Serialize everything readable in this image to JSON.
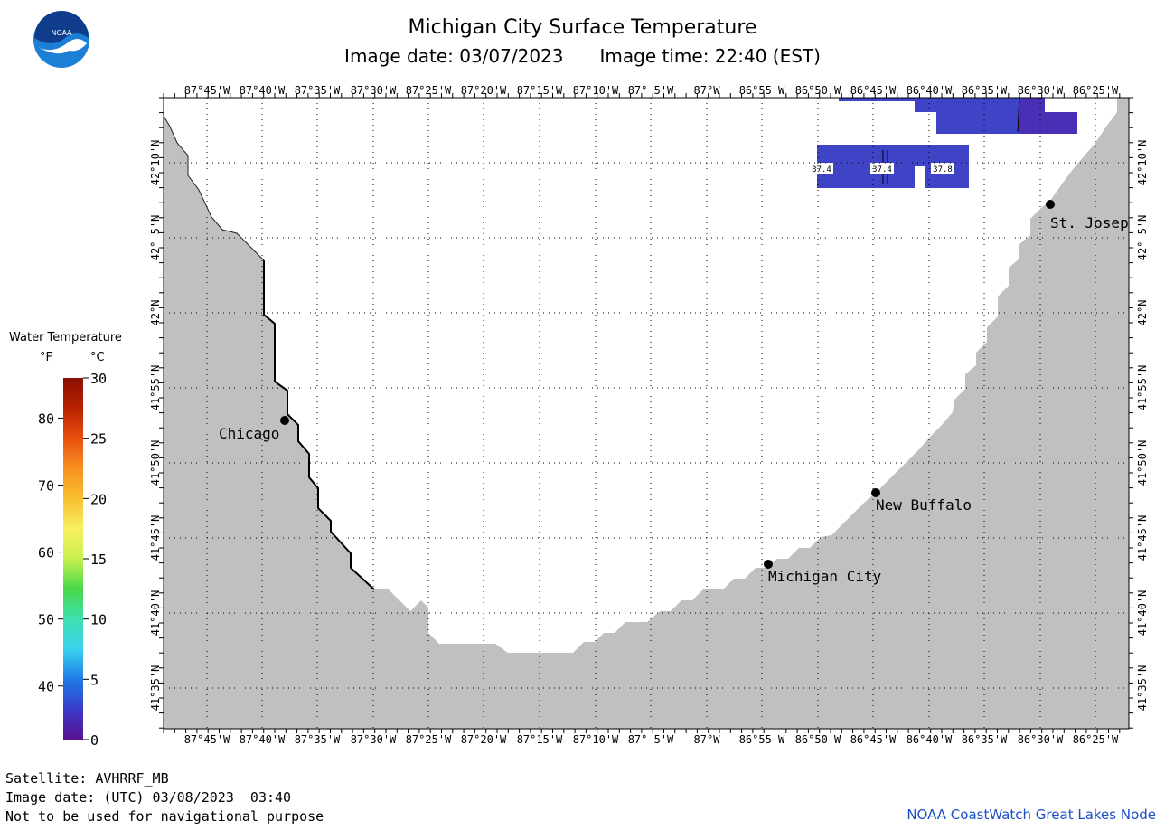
{
  "header": {
    "title": "Michigan City Surface Temperature",
    "image_date": "Image date: 03/07/2023",
    "image_time": "Image time: 22:40 (EST)",
    "logo_text": "NOAA"
  },
  "legend": {
    "title": "Water Temperature",
    "unit_f": "°F",
    "unit_c": "°C",
    "f_ticks": [
      "40",
      "50",
      "60",
      "70",
      "80"
    ],
    "c_ticks": [
      "0",
      "5",
      "10",
      "15",
      "20",
      "25",
      "30"
    ],
    "colors": [
      "#5a1090",
      "#3a3ac8",
      "#1e7be6",
      "#3ad2f0",
      "#3ee0b0",
      "#48d848",
      "#c8f050",
      "#f8f060",
      "#f8c030",
      "#f89020",
      "#e85010",
      "#b82000",
      "#8a1000"
    ]
  },
  "longitude_labels": [
    "87°45'W",
    "87°40'W",
    "87°35'W",
    "87°30'W",
    "87°25'W",
    "87°20'W",
    "87°15'W",
    "87°10'W",
    "87° 5'W",
    "87°W",
    "86°55'W",
    "86°50'W",
    "86°45'W",
    "86°40'W",
    "86°35'W",
    "86°30'W",
    "86°25'W"
  ],
  "latitude_labels": [
    "42°10'N",
    "42° 5'N",
    "42°N",
    "41°55'N",
    "41°50'N",
    "41°45'N",
    "41°40'N",
    "41°35'N"
  ],
  "cities": [
    {
      "name": "Chicago"
    },
    {
      "name": "Michigan City"
    },
    {
      "name": "New Buffalo"
    },
    {
      "name": "St. Josep"
    }
  ],
  "temperature_readings": [
    "37.4",
    "37.4",
    "37.8"
  ],
  "colors": {
    "land": "#c0c0c0",
    "water_cold": "#3f43c6",
    "water_colder": "#4a2fb6",
    "grid": "#808080"
  },
  "footer": {
    "satellite": "Satellite: AVHRRF_MB",
    "utc_date": "Image date: (UTC) 03/08/2023  03:40",
    "disclaimer": "Not to be used for navigational purpose",
    "credit": "NOAA CoastWatch Great Lakes Node"
  }
}
